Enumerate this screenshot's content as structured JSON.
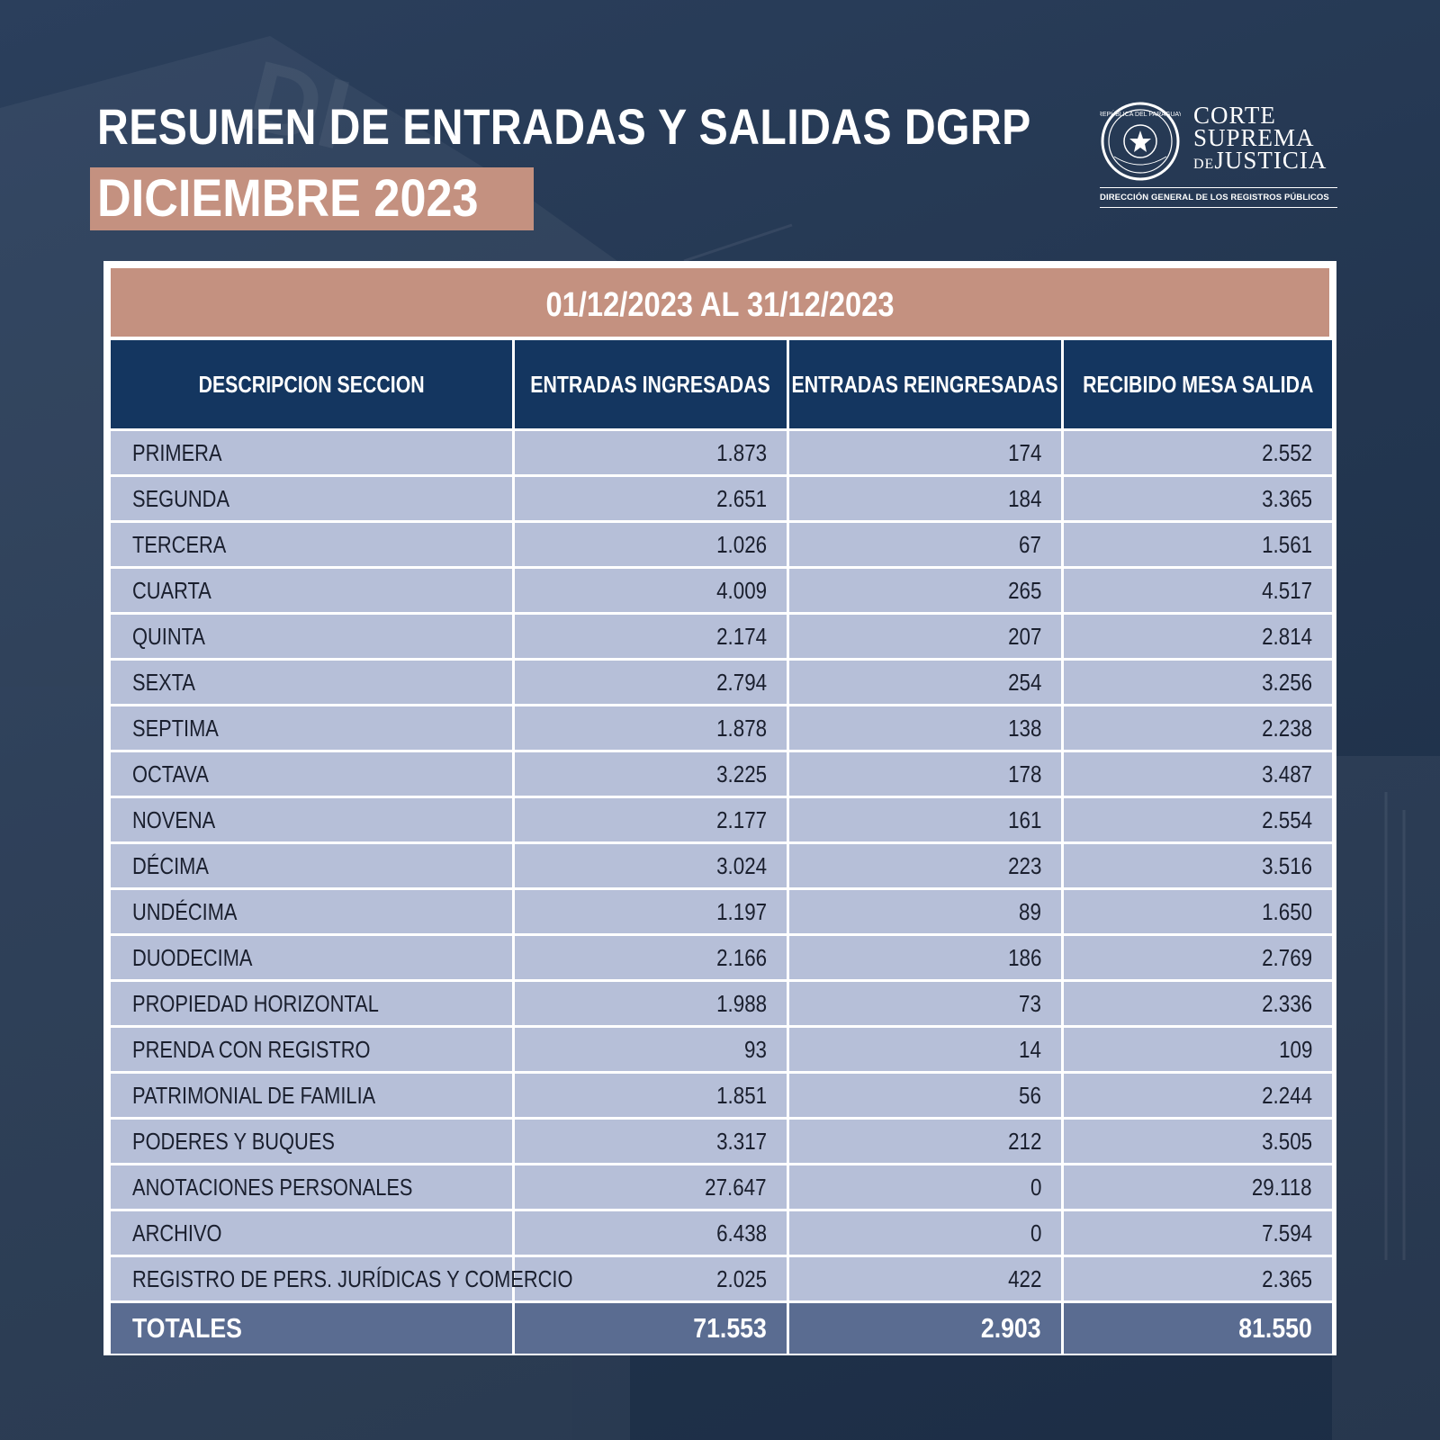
{
  "header": {
    "title": "RESUMEN DE ENTRADAS Y SALIDAS DGRP",
    "subtitle": "DICIEMBRE 2023"
  },
  "logo": {
    "seal_text": "REPÚBLICA DEL PARAGUAY",
    "line1": "CORTE",
    "line2": "SUPREMA",
    "line3_prefix": "DE",
    "line3": "JUSTICIA",
    "subtitle": "DIRECCIÓN GENERAL DE LOS REGISTROS PÚBLICOS"
  },
  "colors": {
    "background": "#233650",
    "accent": "#c49180",
    "header_cell": "#143660",
    "row_cell": "#b6bfd8",
    "total_cell": "#5a6c91"
  },
  "table": {
    "period": "01/12/2023 AL 31/12/2023",
    "columns": [
      "DESCRIPCION SECCION",
      "ENTRADAS INGRESADAS",
      "ENTRADAS REINGRESADAS",
      "RECIBIDO MESA SALIDA"
    ],
    "rows": [
      [
        "PRIMERA",
        "1.873",
        "174",
        "2.552"
      ],
      [
        "SEGUNDA",
        "2.651",
        "184",
        "3.365"
      ],
      [
        "TERCERA",
        "1.026",
        "67",
        "1.561"
      ],
      [
        "CUARTA",
        "4.009",
        "265",
        "4.517"
      ],
      [
        "QUINTA",
        "2.174",
        "207",
        "2.814"
      ],
      [
        "SEXTA",
        "2.794",
        "254",
        "3.256"
      ],
      [
        "SEPTIMA",
        "1.878",
        "138",
        "2.238"
      ],
      [
        "OCTAVA",
        "3.225",
        "178",
        "3.487"
      ],
      [
        "NOVENA",
        "2.177",
        "161",
        "2.554"
      ],
      [
        "DÉCIMA",
        "3.024",
        "223",
        "3.516"
      ],
      [
        "UNDÉCIMA",
        "1.197",
        "89",
        "1.650"
      ],
      [
        "DUODECIMA",
        "2.166",
        "186",
        "2.769"
      ],
      [
        "PROPIEDAD HORIZONTAL",
        "1.988",
        "73",
        "2.336"
      ],
      [
        "PRENDA CON REGISTRO",
        "93",
        "14",
        "109"
      ],
      [
        "PATRIMONIAL DE FAMILIA",
        "1.851",
        "56",
        "2.244"
      ],
      [
        "PODERES Y BUQUES",
        "3.317",
        "212",
        "3.505"
      ],
      [
        "ANOTACIONES PERSONALES",
        "27.647",
        "0",
        "29.118"
      ],
      [
        "ARCHIVO",
        "6.438",
        "0",
        "7.594"
      ],
      [
        "REGISTRO DE PERS. JURÍDICAS Y COMERCIO",
        "2.025",
        "422",
        "2.365"
      ]
    ],
    "totals": [
      "TOTALES",
      "71.553",
      "2.903",
      "81.550"
    ]
  }
}
